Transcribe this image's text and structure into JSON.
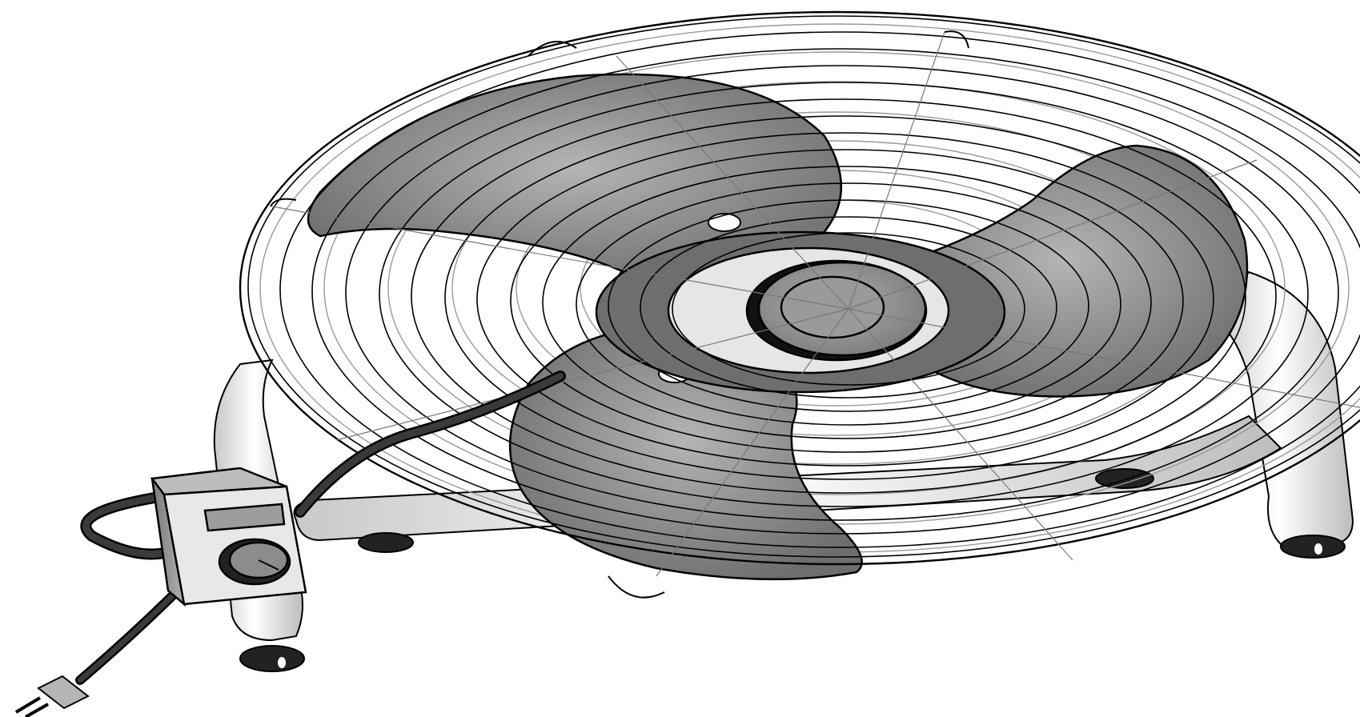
{
  "illustration": {
    "subject_icon": "floor-fan-icon",
    "parts": [
      "fan-guard-icon",
      "fan-blade-icon",
      "fan-hub-icon",
      "stand-frame-icon",
      "speed-control-box-icon",
      "speed-dial-icon",
      "power-cord-icon",
      "plug-icon"
    ],
    "blade_count": 3,
    "palette": {
      "background": "#ffffff",
      "outline": "#000000",
      "blade_fill": "#8a8a8a",
      "blade_dark": "#6a6a6a",
      "hub_fill": "#9a9a9a",
      "hub_dark": "#555555",
      "stand_fill": "#f2f2f2",
      "stand_shade": "#c8c8c8",
      "control_box_fill": "#9c9c9c",
      "control_box_face": "#e8e8e8",
      "cord": "#3a3a3a",
      "foot": "#222222"
    }
  }
}
